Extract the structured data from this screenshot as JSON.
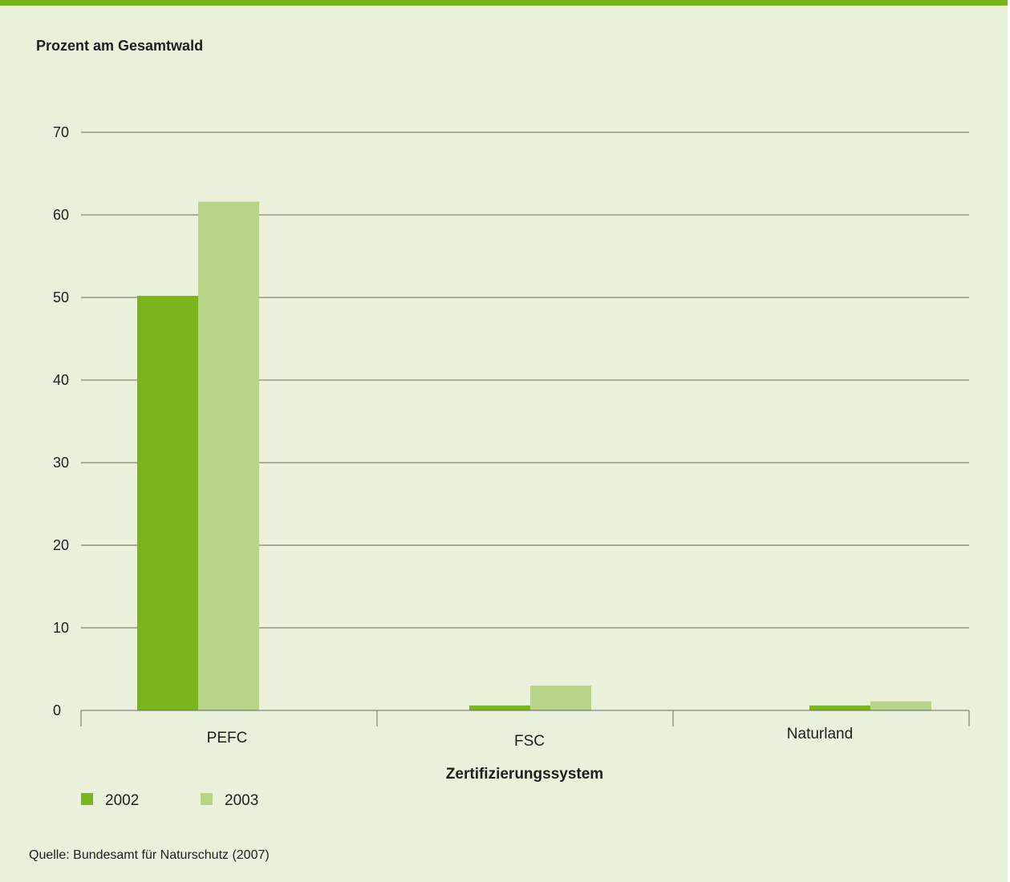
{
  "colors": {
    "background": "#e9f1da",
    "accent_band": "#7ab51d",
    "series_2002": "#7ab51d",
    "series_2003": "#b8d486",
    "grid": "#6b6b6b",
    "text": "#1e1e1e"
  },
  "chart_data": {
    "type": "bar",
    "title": "",
    "ylabel": "Prozent am Gesamtwald",
    "xlabel": "Zertifizierungssystem",
    "categories": [
      "PEFC",
      "FSC",
      "Naturland"
    ],
    "series": [
      {
        "name": "2002",
        "color": "#7ab51d",
        "values": [
          50.2,
          0.6,
          0.6
        ]
      },
      {
        "name": "2003",
        "color": "#b8d486",
        "values": [
          61.6,
          3.0,
          1.1
        ]
      }
    ],
    "ylim": [
      0,
      70
    ],
    "yticks": [
      0,
      10,
      20,
      30,
      40,
      50,
      60,
      70
    ],
    "grid": true,
    "legend": "bottom-left"
  },
  "source_note": "Quelle: Bundesamt für Naturschutz (2007)"
}
